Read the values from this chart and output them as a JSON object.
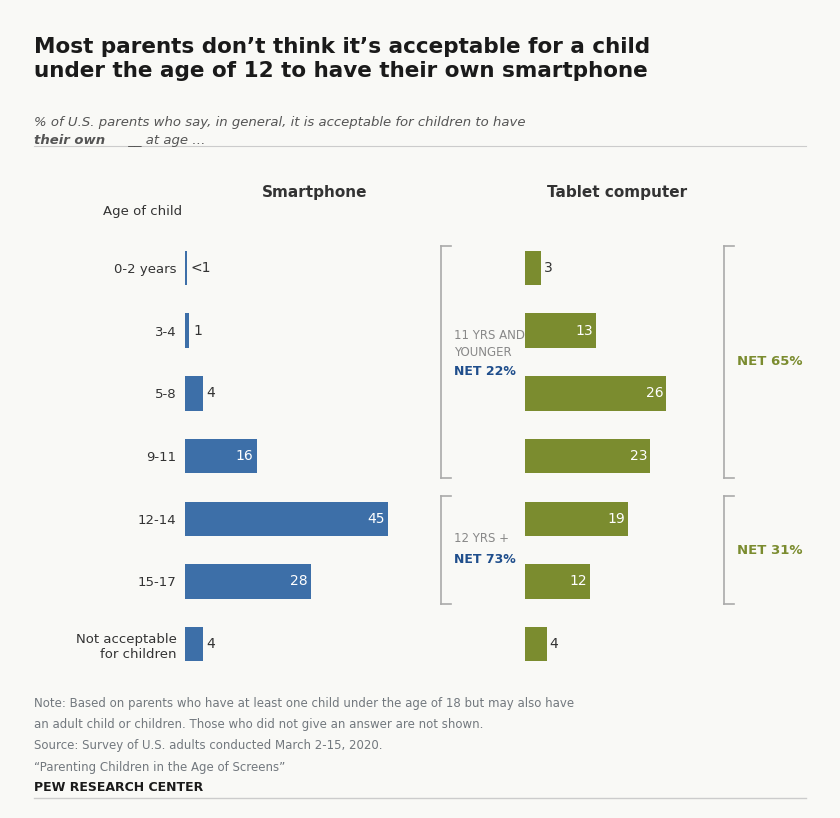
{
  "title": "Most parents don’t think it’s acceptable for a child\nunder the age of 12 to have their own smartphone",
  "subtitle_line1": "% of U.S. parents who say, in general, it is acceptable for children to have",
  "subtitle_line2_bold": "their own",
  "subtitle_line2_rest": " __ at age …",
  "categories": [
    "0-2 years",
    "3-4",
    "5-8",
    "9-11",
    "12-14",
    "15-17",
    "Not acceptable\nfor children"
  ],
  "smartphone_values": [
    0.5,
    1,
    4,
    16,
    45,
    28,
    4
  ],
  "smartphone_labels": [
    "<1",
    "1",
    "4",
    "16",
    "45",
    "28",
    "4"
  ],
  "tablet_values": [
    3,
    13,
    26,
    23,
    19,
    12,
    4
  ],
  "tablet_labels": [
    "3",
    "13",
    "26",
    "23",
    "19",
    "12",
    "4"
  ],
  "smartphone_color": "#3d6fa8",
  "tablet_color": "#7b8c2f",
  "smartphone_header": "Smartphone",
  "tablet_header": "Tablet computer",
  "net_young_label": "11 YRS AND\nYOUNGER",
  "net_young_pct_smartphone": "NET 22%",
  "net_young_pct_tablet": "NET 65%",
  "net_old_label": "12 YRS +",
  "net_old_pct_smartphone": "NET 73%",
  "net_old_pct_tablet": "NET 31%",
  "note_line1": "Note: Based on parents who have at least one child under the age of 18 but may also have",
  "note_line2": "an adult child or children. Those who did not give an answer are not shown.",
  "note_line3": "Source: Survey of U.S. adults conducted March 2-15, 2020.",
  "note_line4": "“Parenting Children in the Age of Screens”",
  "source_label": "PEW RESEARCH CENTER",
  "background_color": "#f9f9f6",
  "text_color": "#333333",
  "note_color": "#72787e",
  "age_label": "Age of child",
  "net_label_color": "#888888",
  "net_pct_color_sm": "#1f4e8c",
  "net_pct_color_tab": "#7b8c2f",
  "bracket_color": "#aaaaaa"
}
